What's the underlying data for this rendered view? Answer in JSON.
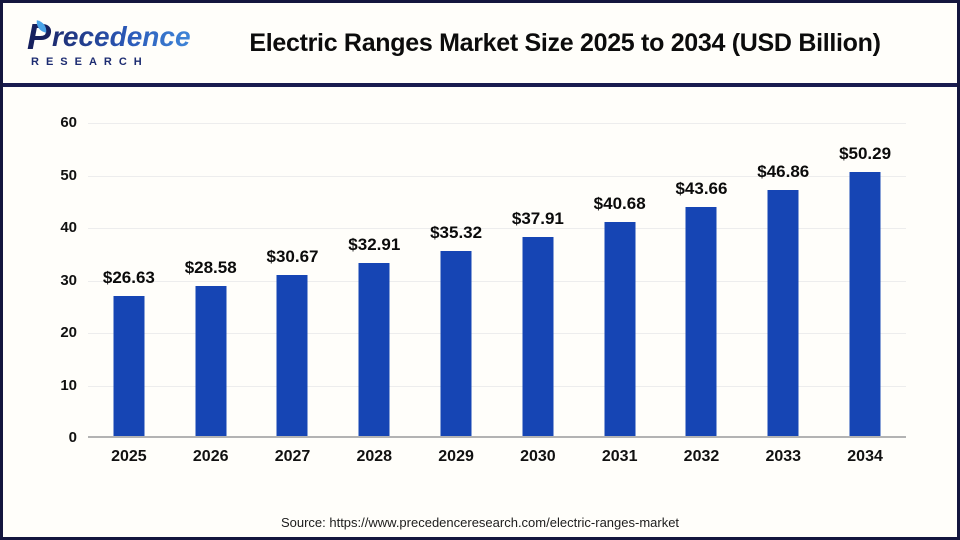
{
  "header": {
    "logo": {
      "brand_first_letter": "P",
      "brand_rest": "recedence",
      "brand_subtitle": "RESEARCH"
    },
    "title": "Electric Ranges Market Size 2025 to 2034 (USD Billion)"
  },
  "chart_data": {
    "type": "bar",
    "title": "Electric Ranges Market Size 2025 to 2034 (USD Billion)",
    "categories": [
      "2025",
      "2026",
      "2027",
      "2028",
      "2029",
      "2030",
      "2031",
      "2032",
      "2033",
      "2034"
    ],
    "values": [
      26.63,
      28.58,
      30.67,
      32.91,
      35.32,
      37.91,
      40.68,
      43.66,
      46.86,
      50.29
    ],
    "bar_labels": [
      "$26.63",
      "$28.58",
      "$30.67",
      "$32.91",
      "$35.32",
      "$37.91",
      "$40.68",
      "$43.66",
      "$46.86",
      "$50.29"
    ],
    "xlabel": "",
    "ylabel": "",
    "ylim": [
      0,
      60
    ],
    "yticks": [
      0,
      10,
      20,
      30,
      40,
      50,
      60
    ],
    "grid": true,
    "legend": "none",
    "bar_color": "#1645b4"
  },
  "footer": {
    "source": "Source: https://www.precedenceresearch.com/electric-ranges-market"
  },
  "colors": {
    "frame_border": "#14163e",
    "header_divider": "#191b4f",
    "bar": "#1645b4",
    "gridline": "#ededed",
    "axis_line": "#b3b3b3",
    "brand_navy": "#1d2c71",
    "brand_blue": "#3f86d8",
    "background": "#fffefa"
  }
}
